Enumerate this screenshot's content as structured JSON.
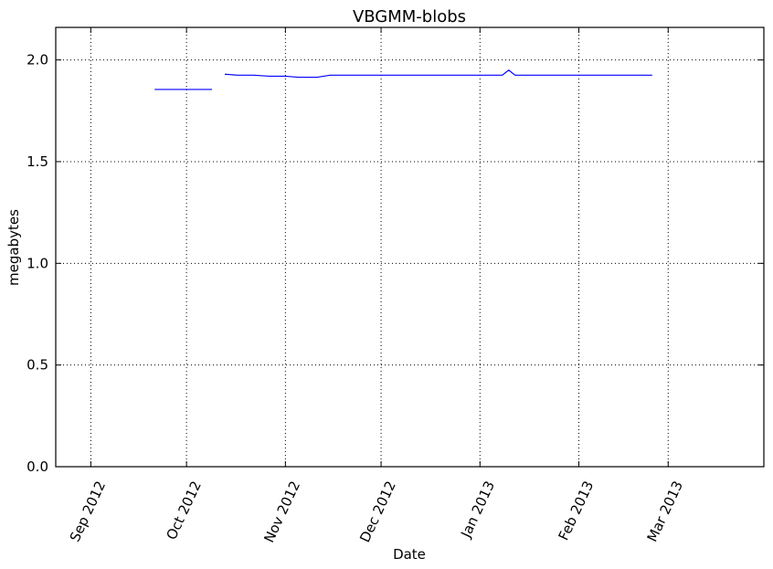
{
  "chart_data": {
    "type": "line",
    "title": "VBGMM-blobs",
    "xlabel": "Date",
    "ylabel": "megabytes",
    "xlim": [
      "2012-08-21",
      "2013-03-31"
    ],
    "ylim": [
      0,
      2.16
    ],
    "grid": true,
    "x_ticks": [
      {
        "date": "2012-09-01",
        "label": "Sep 2012"
      },
      {
        "date": "2012-10-01",
        "label": "Oct 2012"
      },
      {
        "date": "2012-11-01",
        "label": "Nov 2012"
      },
      {
        "date": "2012-12-01",
        "label": "Dec 2012"
      },
      {
        "date": "2013-01-01",
        "label": "Jan 2013"
      },
      {
        "date": "2013-02-01",
        "label": "Feb 2013"
      },
      {
        "date": "2013-03-01",
        "label": "Mar 2013"
      }
    ],
    "y_ticks": [
      {
        "value": 0.0,
        "label": "0.0"
      },
      {
        "value": 0.5,
        "label": "0.5"
      },
      {
        "value": 1.0,
        "label": "1.0"
      },
      {
        "value": 1.5,
        "label": "1.5"
      },
      {
        "value": 2.0,
        "label": "2.0"
      }
    ],
    "series": [
      {
        "color": "#0000ff",
        "segments": [
          [
            {
              "x": "2012-09-21",
              "y": 1.855
            },
            {
              "x": "2012-10-09",
              "y": 1.855
            }
          ],
          [
            {
              "x": "2012-10-13",
              "y": 1.93
            },
            {
              "x": "2012-10-17",
              "y": 1.925
            },
            {
              "x": "2012-10-22",
              "y": 1.925
            },
            {
              "x": "2012-10-27",
              "y": 1.92
            },
            {
              "x": "2012-11-01",
              "y": 1.92
            },
            {
              "x": "2012-11-05",
              "y": 1.915
            },
            {
              "x": "2012-11-11",
              "y": 1.915
            },
            {
              "x": "2012-11-15",
              "y": 1.925
            },
            {
              "x": "2012-11-20",
              "y": 1.925
            },
            {
              "x": "2013-01-08",
              "y": 1.925
            },
            {
              "x": "2013-01-10",
              "y": 1.95
            },
            {
              "x": "2013-01-12",
              "y": 1.925
            },
            {
              "x": "2013-02-24",
              "y": 1.925
            }
          ]
        ]
      }
    ]
  }
}
